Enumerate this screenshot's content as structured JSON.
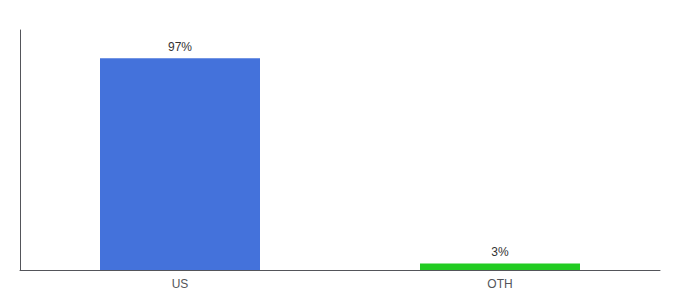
{
  "chart_data": {
    "type": "bar",
    "categories": [
      "US",
      "OTH"
    ],
    "values": [
      97,
      3
    ],
    "value_labels": [
      "97%",
      "3%"
    ],
    "colors": [
      "#4472db",
      "#22cc22"
    ],
    "ylim": [
      0,
      110
    ],
    "yticks": [],
    "grid": false,
    "data_labels": true,
    "tick_labels": "x"
  }
}
